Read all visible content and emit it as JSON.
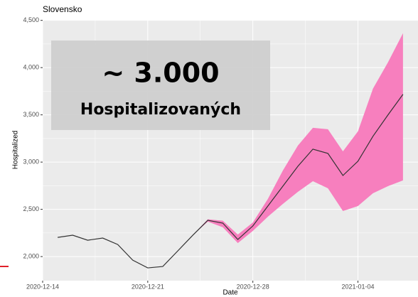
{
  "chart_data": {
    "type": "line",
    "title": "Slovensko",
    "xlabel": "Date",
    "ylabel": "Hospitalized",
    "annotation": {
      "headline": "~ 3.000",
      "text": "Hospitalizovaných"
    },
    "x": [
      "2020-12-15",
      "2020-12-16",
      "2020-12-17",
      "2020-12-18",
      "2020-12-19",
      "2020-12-20",
      "2020-12-21",
      "2020-12-22",
      "2020-12-23",
      "2020-12-24",
      "2020-12-25",
      "2020-12-26",
      "2020-12-27",
      "2020-12-28",
      "2020-12-29",
      "2020-12-30",
      "2020-12-31",
      "2021-01-01",
      "2021-01-02",
      "2021-01-03",
      "2021-01-04",
      "2021-01-05",
      "2021-01-06",
      "2021-01-07"
    ],
    "series": [
      {
        "color": "#333333",
        "values": [
          2203,
          2226,
          2173,
          2196,
          2128,
          1962,
          1880,
          1895,
          2060,
          2226,
          2384,
          2354,
          2181,
          2324,
          2535,
          2745,
          2956,
          3137,
          3092,
          2858,
          3009,
          3273,
          3499,
          3717
        ]
      }
    ],
    "band": {
      "color": "#f77fbe",
      "lower": [
        null,
        null,
        null,
        null,
        null,
        null,
        null,
        null,
        null,
        2226,
        2370,
        2310,
        2143,
        2271,
        2422,
        2557,
        2685,
        2798,
        2723,
        2482,
        2535,
        2670,
        2745,
        2806
      ],
      "upper": [
        null,
        null,
        null,
        null,
        null,
        null,
        null,
        null,
        null,
        2226,
        2395,
        2380,
        2233,
        2361,
        2610,
        2911,
        3175,
        3363,
        3348,
        3114,
        3325,
        3777,
        4056,
        4364
      ]
    },
    "xlim": [
      "2020-12-14",
      "2021-01-08"
    ],
    "xticks": [
      "2020-12-14",
      "2020-12-21",
      "2020-12-28",
      "2021-01-04"
    ],
    "ylim": [
      1745,
      4505
    ],
    "yticks": [
      {
        "value": 2000,
        "label": "2,000"
      },
      {
        "value": 2500,
        "label": "2,500"
      },
      {
        "value": 3000,
        "label": "3,000"
      },
      {
        "value": 3500,
        "label": "3,500"
      },
      {
        "value": 4000,
        "label": "4,000"
      },
      {
        "value": 4500,
        "label": "4,500"
      }
    ],
    "grid": true
  }
}
